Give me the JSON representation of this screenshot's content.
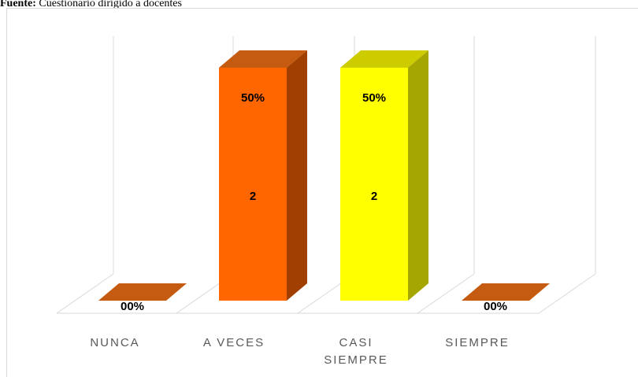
{
  "source": {
    "prefix": "Fuente:",
    "text": " Cuestionario dirigido a docentes"
  },
  "chart_data": {
    "type": "bar",
    "categories": [
      "NUNCA",
      "A VECES",
      "CASI SIEMPRE",
      "SIEMPRE"
    ],
    "category_lines": [
      [
        "NUNCA"
      ],
      [
        "A VECES"
      ],
      [
        "CASI",
        "SIEMPRE"
      ],
      [
        "SIEMPRE"
      ]
    ],
    "values": [
      0,
      2,
      2,
      0
    ],
    "percent_labels": [
      "00%",
      "50%",
      "50%",
      "00%"
    ],
    "count_labels": [
      "",
      "2",
      "2",
      ""
    ],
    "ylim": [
      0,
      2
    ],
    "grid": false,
    "legend": "none",
    "colors": {
      "front": [
        "#ff6600",
        "#ff6600",
        "#ffff00",
        "#ff6600"
      ],
      "top": [
        "#c55a11",
        "#c55a11",
        "#cccc00",
        "#c55a11"
      ],
      "side": [
        "#a03f00",
        "#a03f00",
        "#a6a600",
        "#a03f00"
      ],
      "floor_line": "#d9d9d9",
      "axis_text": "#595959"
    }
  }
}
